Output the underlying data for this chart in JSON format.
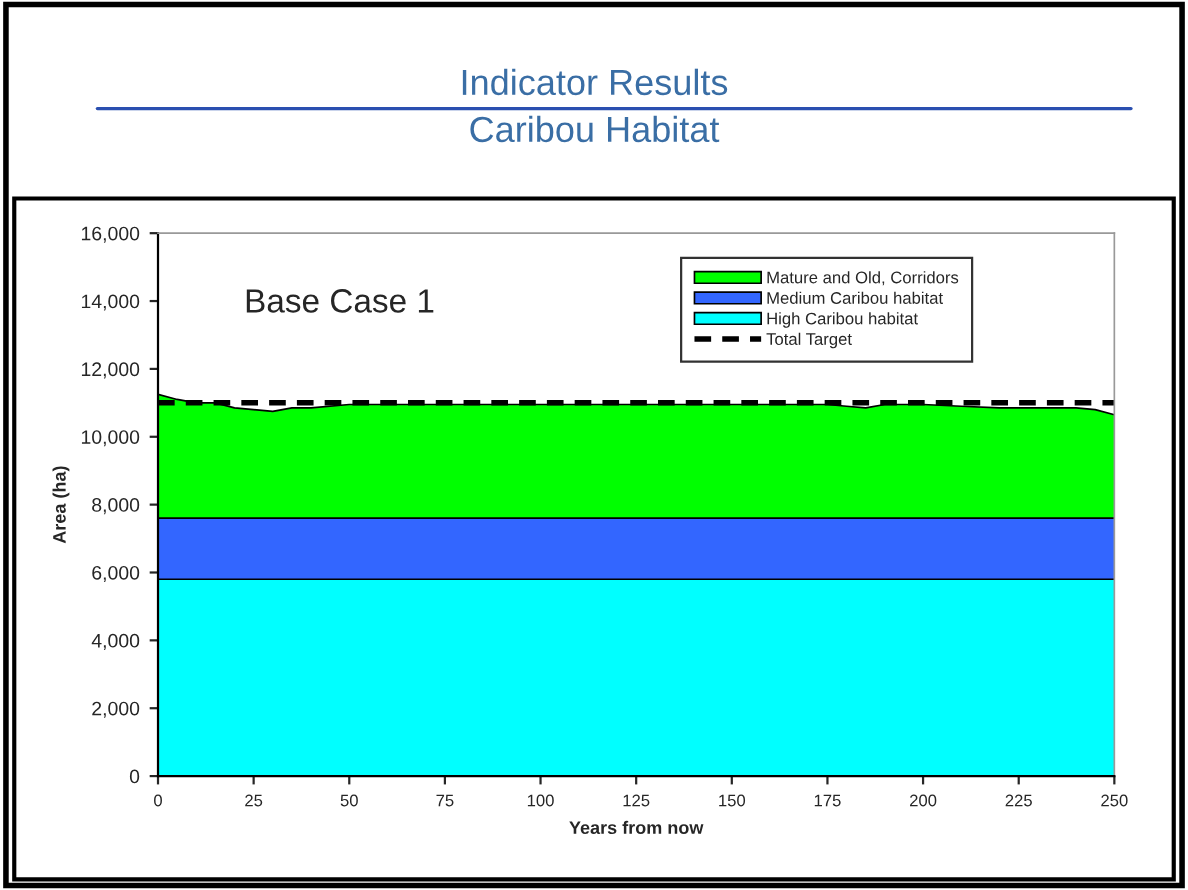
{
  "chart_data": {
    "type": "area",
    "title": "Indicator Results",
    "subtitle": "Caribou Habitat",
    "xlabel": "Years from now",
    "ylabel": "Area (ha)",
    "annotations": [
      "Base Case 1"
    ],
    "x": [
      0,
      5,
      10,
      15,
      20,
      25,
      30,
      35,
      40,
      50,
      75,
      100,
      125,
      150,
      175,
      180,
      185,
      190,
      200,
      210,
      220,
      230,
      240,
      245,
      250
    ],
    "stacked": true,
    "series": [
      {
        "name": "High Caribou habitat",
        "color": "#00ffff",
        "values": [
          5800,
          5800,
          5800,
          5800,
          5800,
          5800,
          5800,
          5800,
          5800,
          5800,
          5800,
          5800,
          5800,
          5800,
          5800,
          5800,
          5800,
          5800,
          5800,
          5800,
          5800,
          5800,
          5800,
          5800,
          5800
        ]
      },
      {
        "name": "Medium Caribou habitat",
        "color": "#3366ff",
        "values": [
          1800,
          1800,
          1800,
          1800,
          1800,
          1800,
          1800,
          1800,
          1800,
          1800,
          1800,
          1800,
          1800,
          1800,
          1800,
          1800,
          1800,
          1800,
          1800,
          1800,
          1800,
          1800,
          1800,
          1800,
          1800
        ]
      },
      {
        "name": "Mature and Old, Corridors",
        "color": "#00ff00",
        "values": [
          3650,
          3500,
          3400,
          3400,
          3250,
          3200,
          3150,
          3250,
          3250,
          3350,
          3350,
          3350,
          3350,
          3350,
          3350,
          3300,
          3250,
          3350,
          3350,
          3300,
          3250,
          3250,
          3250,
          3200,
          3050
        ]
      }
    ],
    "ref_lines": [
      {
        "axis": "y",
        "value": 11000,
        "label": "Total Target",
        "color": "#000000",
        "line_style": "dashed"
      }
    ],
    "xlim": [
      0,
      250
    ],
    "xticks": [
      0,
      25,
      50,
      75,
      100,
      125,
      150,
      175,
      200,
      225,
      250
    ],
    "ylim": [
      0,
      16000
    ],
    "yticks": [
      {
        "value": 0,
        "label": "0"
      },
      {
        "value": 2000,
        "label": "2,000"
      },
      {
        "value": 4000,
        "label": "4,000"
      },
      {
        "value": 6000,
        "label": "6,000"
      },
      {
        "value": 8000,
        "label": "8,000"
      },
      {
        "value": 10000,
        "label": "10,000"
      },
      {
        "value": 12000,
        "label": "12,000"
      },
      {
        "value": 14000,
        "label": "14,000"
      },
      {
        "value": 16000,
        "label": "16,000"
      }
    ],
    "legend": "top right",
    "grid": false
  }
}
